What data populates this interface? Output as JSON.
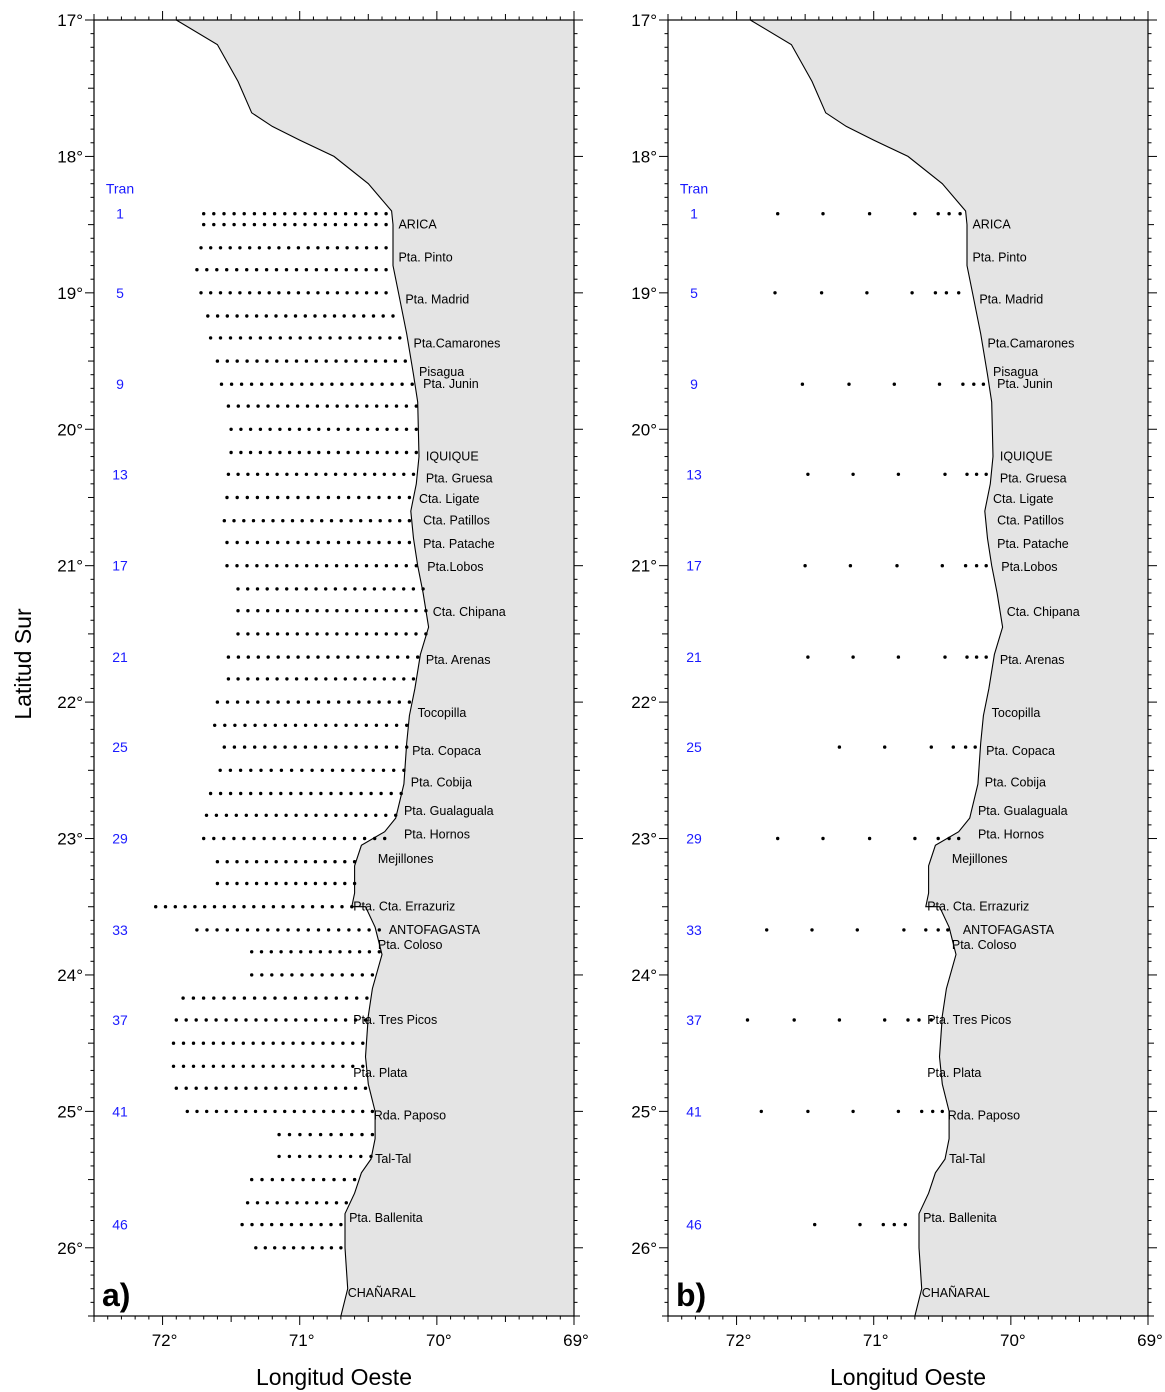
{
  "y_axis_title": "Latitud Sur",
  "x_axis_title": "Longitud Oeste",
  "colors": {
    "land": "#e4e4e4",
    "sea": "#ffffff",
    "coast": "#000000",
    "transect_label": "#1a1aff",
    "station": "#000000"
  },
  "map_extent": {
    "lon_west": 72.5,
    "lon_east": 69.0,
    "lat_north": 17.0,
    "lat_south": 26.5
  },
  "lat_ticks": [
    {
      "value": 17,
      "label": "17°"
    },
    {
      "value": 18,
      "label": "18°"
    },
    {
      "value": 19,
      "label": "19°"
    },
    {
      "value": 20,
      "label": "20°"
    },
    {
      "value": 21,
      "label": "21°"
    },
    {
      "value": 22,
      "label": "22°"
    },
    {
      "value": 23,
      "label": "23°"
    },
    {
      "value": 24,
      "label": "24°"
    },
    {
      "value": 25,
      "label": "25°"
    },
    {
      "value": 26,
      "label": "26°"
    }
  ],
  "lon_ticks": [
    {
      "value": 72,
      "label": "72°"
    },
    {
      "value": 71,
      "label": "71°"
    },
    {
      "value": 70,
      "label": "70°"
    },
    {
      "value": 69,
      "label": "69°"
    }
  ],
  "coastline": [
    [
      71.9,
      17.0
    ],
    [
      71.6,
      17.18
    ],
    [
      71.45,
      17.45
    ],
    [
      71.35,
      17.68
    ],
    [
      71.2,
      17.78
    ],
    [
      71.0,
      17.88
    ],
    [
      70.75,
      18.0
    ],
    [
      70.5,
      18.2
    ],
    [
      70.33,
      18.4
    ],
    [
      70.32,
      18.5
    ],
    [
      70.32,
      18.8
    ],
    [
      70.28,
      19.0
    ],
    [
      70.22,
      19.3
    ],
    [
      70.17,
      19.6
    ],
    [
      70.14,
      19.8
    ],
    [
      70.13,
      20.2
    ],
    [
      70.15,
      20.4
    ],
    [
      70.19,
      20.6
    ],
    [
      70.17,
      20.8
    ],
    [
      70.14,
      21.0
    ],
    [
      70.1,
      21.2
    ],
    [
      70.06,
      21.45
    ],
    [
      70.12,
      21.65
    ],
    [
      70.16,
      21.9
    ],
    [
      70.2,
      22.1
    ],
    [
      70.22,
      22.3
    ],
    [
      70.24,
      22.6
    ],
    [
      70.3,
      22.85
    ],
    [
      70.38,
      22.95
    ],
    [
      70.55,
      23.05
    ],
    [
      70.6,
      23.2
    ],
    [
      70.6,
      23.4
    ],
    [
      70.62,
      23.5
    ],
    [
      70.52,
      23.5
    ],
    [
      70.45,
      23.65
    ],
    [
      70.4,
      23.85
    ],
    [
      70.47,
      24.1
    ],
    [
      70.5,
      24.3
    ],
    [
      70.52,
      24.6
    ],
    [
      70.5,
      24.8
    ],
    [
      70.45,
      25.0
    ],
    [
      70.45,
      25.2
    ],
    [
      70.48,
      25.35
    ],
    [
      70.55,
      25.45
    ],
    [
      70.6,
      25.6
    ],
    [
      70.67,
      25.75
    ],
    [
      70.67,
      26.0
    ],
    [
      70.65,
      26.3
    ],
    [
      70.7,
      26.5
    ]
  ],
  "panels": [
    {
      "letter": "a)",
      "transect_header": "Tran",
      "transect_labels": [
        {
          "label": "1",
          "lat": 18.42
        },
        {
          "label": "5",
          "lat": 19.0
        },
        {
          "label": "9",
          "lat": 19.67
        },
        {
          "label": "13",
          "lat": 20.33
        },
        {
          "label": "17",
          "lat": 21.0
        },
        {
          "label": "21",
          "lat": 21.67
        },
        {
          "label": "25",
          "lat": 22.33
        },
        {
          "label": "29",
          "lat": 23.0
        },
        {
          "label": "33",
          "lat": 23.67
        },
        {
          "label": "37",
          "lat": 24.33
        },
        {
          "label": "41",
          "lat": 25.0
        },
        {
          "label": "46",
          "lat": 25.83
        }
      ],
      "places": [
        {
          "name": "ARICA",
          "lon": 70.28,
          "lat": 18.5
        },
        {
          "name": "Pta. Pinto",
          "lon": 70.28,
          "lat": 18.74
        },
        {
          "name": "Pta. Madrid",
          "lon": 70.23,
          "lat": 19.05
        },
        {
          "name": "Pta.Camarones",
          "lon": 70.17,
          "lat": 19.37
        },
        {
          "name": "Pisagua",
          "lon": 70.13,
          "lat": 19.58
        },
        {
          "name": "Pta. Junin",
          "lon": 70.1,
          "lat": 19.67
        },
        {
          "name": "IQUIQUE",
          "lon": 70.08,
          "lat": 20.2
        },
        {
          "name": "Pta. Gruesa",
          "lon": 70.08,
          "lat": 20.36
        },
        {
          "name": "Cta. Ligate",
          "lon": 70.13,
          "lat": 20.51
        },
        {
          "name": "Cta. Patillos",
          "lon": 70.1,
          "lat": 20.67
        },
        {
          "name": "Pta. Patache",
          "lon": 70.1,
          "lat": 20.84
        },
        {
          "name": "Pta.Lobos",
          "lon": 70.07,
          "lat": 21.01
        },
        {
          "name": "Cta. Chipana",
          "lon": 70.03,
          "lat": 21.34
        },
        {
          "name": "Pta. Arenas",
          "lon": 70.08,
          "lat": 21.69
        },
        {
          "name": "Tocopilla",
          "lon": 70.14,
          "lat": 22.08
        },
        {
          "name": "Pta. Copaca",
          "lon": 70.18,
          "lat": 22.36
        },
        {
          "name": "Pta. Cobija",
          "lon": 70.19,
          "lat": 22.59
        },
        {
          "name": "Pta. Gualaguala",
          "lon": 70.24,
          "lat": 22.8
        },
        {
          "name": "Pta. Hornos",
          "lon": 70.24,
          "lat": 22.97
        },
        {
          "name": "Mejillones",
          "lon": 70.43,
          "lat": 23.15
        },
        {
          "name": "Pta. Cta. Errazuriz",
          "lon": 70.61,
          "lat": 23.5
        },
        {
          "name": "ANTOFAGASTA",
          "lon": 70.35,
          "lat": 23.67
        },
        {
          "name": "Pta. Coloso",
          "lon": 70.43,
          "lat": 23.78
        },
        {
          "name": "Pta. Tres Picos",
          "lon": 70.61,
          "lat": 24.33
        },
        {
          "name": "Pta. Plata",
          "lon": 70.61,
          "lat": 24.72
        },
        {
          "name": "Rda. Paposo",
          "lon": 70.46,
          "lat": 25.03
        },
        {
          "name": "Tal-Tal",
          "lon": 70.45,
          "lat": 25.35
        },
        {
          "name": "Pta. Ballenita",
          "lon": 70.64,
          "lat": 25.78
        },
        {
          "name": "CHAÑARAL",
          "lon": 70.65,
          "lat": 26.33
        }
      ],
      "transects": [
        {
          "lat": 18.42,
          "w": 71.7,
          "e": 70.37
        },
        {
          "lat": 18.5,
          "w": 71.7,
          "e": 70.37
        },
        {
          "lat": 18.67,
          "w": 71.72,
          "e": 70.37
        },
        {
          "lat": 18.83,
          "w": 71.75,
          "e": 70.37
        },
        {
          "lat": 19.0,
          "w": 71.72,
          "e": 70.37
        },
        {
          "lat": 19.17,
          "w": 71.67,
          "e": 70.32
        },
        {
          "lat": 19.33,
          "w": 71.65,
          "e": 70.27
        },
        {
          "lat": 19.5,
          "w": 71.6,
          "e": 70.23
        },
        {
          "lat": 19.67,
          "w": 71.57,
          "e": 70.18
        },
        {
          "lat": 19.83,
          "w": 71.52,
          "e": 70.15
        },
        {
          "lat": 20.0,
          "w": 71.5,
          "e": 70.15
        },
        {
          "lat": 20.17,
          "w": 71.5,
          "e": 70.15
        },
        {
          "lat": 20.33,
          "w": 71.52,
          "e": 70.17
        },
        {
          "lat": 20.5,
          "w": 71.53,
          "e": 70.2
        },
        {
          "lat": 20.67,
          "w": 71.55,
          "e": 70.2
        },
        {
          "lat": 20.83,
          "w": 71.53,
          "e": 70.2
        },
        {
          "lat": 21.0,
          "w": 71.53,
          "e": 70.15
        },
        {
          "lat": 21.17,
          "w": 71.45,
          "e": 70.1
        },
        {
          "lat": 21.33,
          "w": 71.45,
          "e": 70.08
        },
        {
          "lat": 21.5,
          "w": 71.45,
          "e": 70.08
        },
        {
          "lat": 21.67,
          "w": 71.52,
          "e": 70.14
        },
        {
          "lat": 21.83,
          "w": 71.52,
          "e": 70.17
        },
        {
          "lat": 22.0,
          "w": 71.6,
          "e": 70.2
        },
        {
          "lat": 22.17,
          "w": 71.62,
          "e": 70.22
        },
        {
          "lat": 22.33,
          "w": 71.55,
          "e": 70.22
        },
        {
          "lat": 22.5,
          "w": 71.58,
          "e": 70.24
        },
        {
          "lat": 22.67,
          "w": 71.65,
          "e": 70.26
        },
        {
          "lat": 22.83,
          "w": 71.68,
          "e": 70.3
        },
        {
          "lat": 23.0,
          "w": 71.7,
          "e": 70.38
        },
        {
          "lat": 23.17,
          "w": 71.6,
          "e": 70.6
        },
        {
          "lat": 23.33,
          "w": 71.6,
          "e": 70.6
        },
        {
          "lat": 23.5,
          "w": 72.05,
          "e": 70.62
        },
        {
          "lat": 23.67,
          "w": 71.75,
          "e": 70.42
        },
        {
          "lat": 23.83,
          "w": 71.35,
          "e": 70.42
        },
        {
          "lat": 24.0,
          "w": 71.35,
          "e": 70.47
        },
        {
          "lat": 24.17,
          "w": 71.85,
          "e": 70.51
        },
        {
          "lat": 24.33,
          "w": 71.9,
          "e": 70.52
        },
        {
          "lat": 24.5,
          "w": 71.92,
          "e": 70.54
        },
        {
          "lat": 24.67,
          "w": 71.92,
          "e": 70.54
        },
        {
          "lat": 24.83,
          "w": 71.9,
          "e": 70.52
        },
        {
          "lat": 25.0,
          "w": 71.82,
          "e": 70.47
        },
        {
          "lat": 25.17,
          "w": 71.15,
          "e": 70.47
        },
        {
          "lat": 25.33,
          "w": 71.15,
          "e": 70.48
        },
        {
          "lat": 25.5,
          "w": 71.35,
          "e": 70.6
        },
        {
          "lat": 25.67,
          "w": 71.38,
          "e": 70.66
        },
        {
          "lat": 25.83,
          "w": 71.42,
          "e": 70.7
        },
        {
          "lat": 26.0,
          "w": 71.32,
          "e": 70.7
        }
      ]
    },
    {
      "letter": "b)",
      "transect_header": "Tran",
      "transect_labels": [
        {
          "label": "1",
          "lat": 18.42
        },
        {
          "label": "5",
          "lat": 19.0
        },
        {
          "label": "9",
          "lat": 19.67
        },
        {
          "label": "13",
          "lat": 20.33
        },
        {
          "label": "17",
          "lat": 21.0
        },
        {
          "label": "21",
          "lat": 21.67
        },
        {
          "label": "25",
          "lat": 22.33
        },
        {
          "label": "29",
          "lat": 23.0
        },
        {
          "label": "33",
          "lat": 23.67
        },
        {
          "label": "37",
          "lat": 24.33
        },
        {
          "label": "41",
          "lat": 25.0
        },
        {
          "label": "46",
          "lat": 25.83
        }
      ],
      "places": [
        {
          "name": "ARICA",
          "lon": 70.28,
          "lat": 18.5
        },
        {
          "name": "Pta. Pinto",
          "lon": 70.28,
          "lat": 18.74
        },
        {
          "name": "Pta. Madrid",
          "lon": 70.23,
          "lat": 19.05
        },
        {
          "name": "Pta.Camarones",
          "lon": 70.17,
          "lat": 19.37
        },
        {
          "name": "Pisagua",
          "lon": 70.13,
          "lat": 19.58
        },
        {
          "name": "Pta. Junin",
          "lon": 70.1,
          "lat": 19.67
        },
        {
          "name": "IQUIQUE",
          "lon": 70.08,
          "lat": 20.2
        },
        {
          "name": "Pta. Gruesa",
          "lon": 70.08,
          "lat": 20.36
        },
        {
          "name": "Cta. Ligate",
          "lon": 70.13,
          "lat": 20.51
        },
        {
          "name": "Cta. Patillos",
          "lon": 70.1,
          "lat": 20.67
        },
        {
          "name": "Pta. Patache",
          "lon": 70.1,
          "lat": 20.84
        },
        {
          "name": "Pta.Lobos",
          "lon": 70.07,
          "lat": 21.01
        },
        {
          "name": "Cta. Chipana",
          "lon": 70.03,
          "lat": 21.34
        },
        {
          "name": "Pta. Arenas",
          "lon": 70.08,
          "lat": 21.69
        },
        {
          "name": "Tocopilla",
          "lon": 70.14,
          "lat": 22.08
        },
        {
          "name": "Pta. Copaca",
          "lon": 70.18,
          "lat": 22.36
        },
        {
          "name": "Pta. Cobija",
          "lon": 70.19,
          "lat": 22.59
        },
        {
          "name": "Pta. Gualaguala",
          "lon": 70.24,
          "lat": 22.8
        },
        {
          "name": "Pta. Hornos",
          "lon": 70.24,
          "lat": 22.97
        },
        {
          "name": "Mejillones",
          "lon": 70.43,
          "lat": 23.15
        },
        {
          "name": "Pta. Cta. Errazuriz",
          "lon": 70.61,
          "lat": 23.5
        },
        {
          "name": "ANTOFAGASTA",
          "lon": 70.35,
          "lat": 23.67
        },
        {
          "name": "Pta. Coloso",
          "lon": 70.43,
          "lat": 23.78
        },
        {
          "name": "Pta. Tres Picos",
          "lon": 70.61,
          "lat": 24.33
        },
        {
          "name": "Pta. Plata",
          "lon": 70.61,
          "lat": 24.72
        },
        {
          "name": "Rda. Paposo",
          "lon": 70.46,
          "lat": 25.03
        },
        {
          "name": "Tal-Tal",
          "lon": 70.45,
          "lat": 25.35
        },
        {
          "name": "Pta. Ballenita",
          "lon": 70.64,
          "lat": 25.78
        },
        {
          "name": "CHAÑARAL",
          "lon": 70.65,
          "lat": 26.33
        }
      ],
      "stations": [
        {
          "lat": 18.42,
          "lons": [
            71.7,
            71.37,
            71.03,
            70.7,
            70.53,
            70.45,
            70.37
          ]
        },
        {
          "lat": 19.0,
          "lons": [
            71.72,
            71.38,
            71.05,
            70.72,
            70.55,
            70.47,
            70.38
          ]
        },
        {
          "lat": 19.67,
          "lons": [
            71.52,
            71.18,
            70.85,
            70.52,
            70.35,
            70.27,
            70.2
          ]
        },
        {
          "lat": 20.33,
          "lons": [
            71.48,
            71.15,
            70.82,
            70.48,
            70.32,
            70.25,
            70.18
          ]
        },
        {
          "lat": 21.0,
          "lons": [
            71.5,
            71.17,
            70.83,
            70.5,
            70.33,
            70.25,
            70.18
          ]
        },
        {
          "lat": 21.67,
          "lons": [
            71.48,
            71.15,
            70.82,
            70.48,
            70.32,
            70.25,
            70.18
          ]
        },
        {
          "lat": 22.33,
          "lons": [
            71.25,
            70.92,
            70.58,
            70.42,
            70.33,
            70.26
          ]
        },
        {
          "lat": 23.0,
          "lons": [
            71.7,
            71.37,
            71.03,
            70.7,
            70.53,
            70.45,
            70.38
          ]
        },
        {
          "lat": 23.67,
          "lons": [
            71.78,
            71.45,
            71.12,
            70.78,
            70.62,
            70.53,
            70.46
          ]
        },
        {
          "lat": 24.33,
          "lons": [
            71.92,
            71.58,
            71.25,
            70.92,
            70.75,
            70.67,
            70.58
          ]
        },
        {
          "lat": 25.0,
          "lons": [
            71.82,
            71.48,
            71.15,
            70.82,
            70.65,
            70.57,
            70.5
          ]
        },
        {
          "lat": 25.83,
          "lons": [
            71.43,
            71.1,
            70.93,
            70.85,
            70.77
          ]
        }
      ]
    }
  ]
}
